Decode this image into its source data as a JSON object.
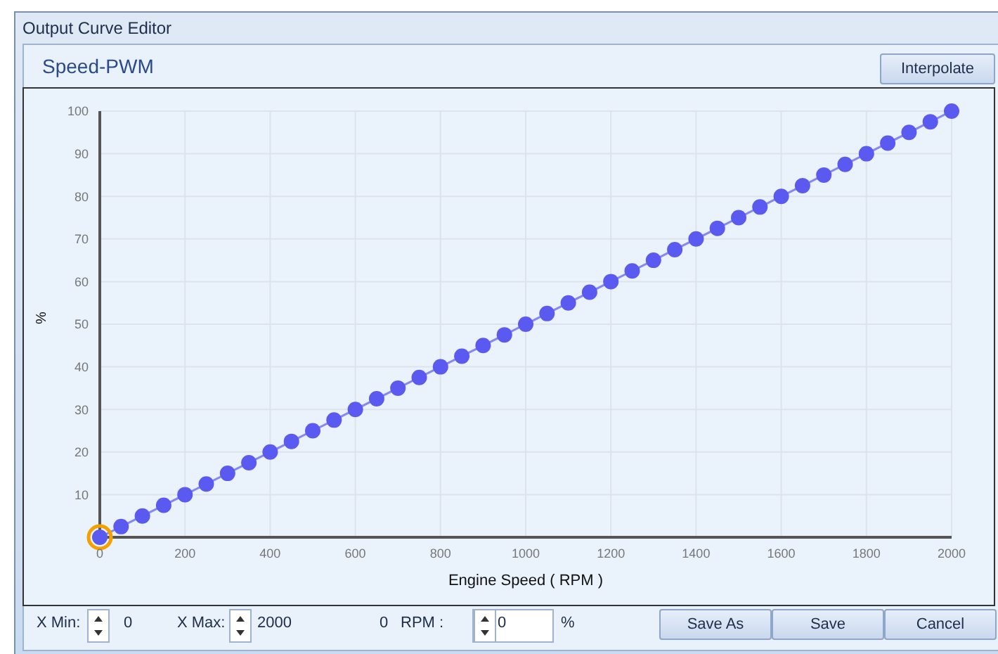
{
  "chart_data": {
    "type": "line",
    "title": "Speed-PWM",
    "xlabel": "Engine Speed ( RPM )",
    "ylabel": "%",
    "x": [
      0,
      50,
      100,
      150,
      200,
      250,
      300,
      350,
      400,
      450,
      500,
      550,
      600,
      650,
      700,
      750,
      800,
      850,
      900,
      950,
      1000,
      1050,
      1100,
      1150,
      1200,
      1250,
      1300,
      1350,
      1400,
      1450,
      1500,
      1550,
      1600,
      1650,
      1700,
      1750,
      1800,
      1850,
      1900,
      1950,
      2000
    ],
    "series": [
      {
        "color": "#5a5af0",
        "values": [
          0,
          2.5,
          5,
          7.5,
          10,
          12.5,
          15,
          17.5,
          20,
          22.5,
          25,
          27.5,
          30,
          32.5,
          35,
          37.5,
          40,
          42.5,
          45,
          47.5,
          50,
          52.5,
          55,
          57.5,
          60,
          62.5,
          65,
          67.5,
          70,
          72.5,
          75,
          77.5,
          80,
          82.5,
          85,
          87.5,
          90,
          92.5,
          95,
          97.5,
          100
        ]
      }
    ],
    "xlim": [
      0,
      2000
    ],
    "xticks": [
      0,
      200,
      400,
      600,
      800,
      1000,
      1200,
      1400,
      1600,
      1800,
      2000
    ],
    "ylim": [
      0,
      100
    ],
    "yticks": [
      {
        "value": 0,
        "label": null
      },
      10,
      20,
      30,
      40,
      50,
      60,
      70,
      80,
      90,
      100
    ],
    "grid": true,
    "marker": "circle",
    "line_style": "solid",
    "legend": false,
    "annotations": [
      "Output Curve Editor",
      "Interpolate",
      "X Min:",
      "0",
      "X Max:",
      "2000",
      "0",
      "RPM :",
      "0",
      "%",
      "Save As",
      "Save",
      "Cancel"
    ]
  }
}
